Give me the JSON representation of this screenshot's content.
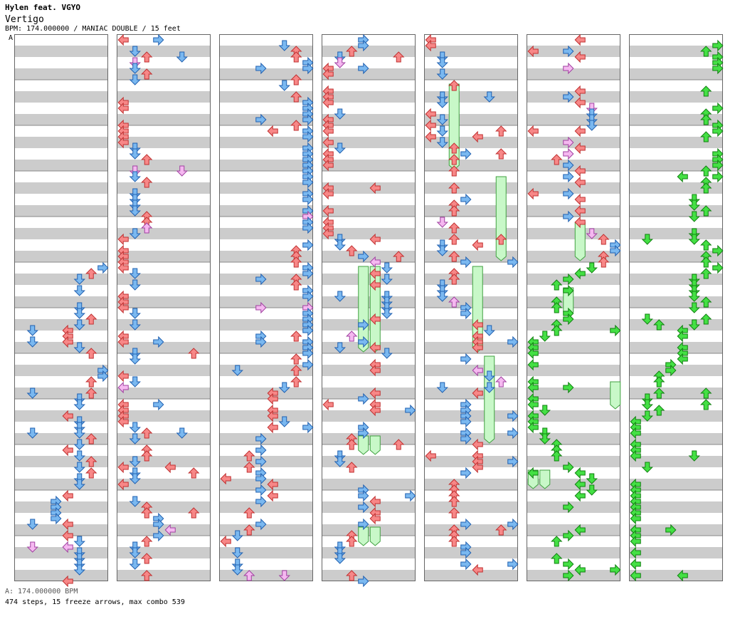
{
  "header": {
    "artist": "Hylen feat. VGYO",
    "song_title": "Vertigo",
    "meta": "BPM: 174.000000 / MANIAC DOUBLE / 15 feet"
  },
  "bpm_marker": "A",
  "footer": {
    "bpm_line": "A: 174.000000 BPM",
    "stats": "474 steps, 15 freeze arrows, max combo 539"
  },
  "colors": {
    "red": "#f78787",
    "red_stroke": "#c03030",
    "blue": "#7ab8f0",
    "blue_stroke": "#2060b0",
    "pink": "#f5b8f0",
    "pink_stroke": "#a040a0",
    "green": "#44e044",
    "green_stroke": "#108010",
    "freeze": "#c8f8c8",
    "freeze_stroke": "#40a040",
    "band": "#cccccc"
  },
  "columns": 7,
  "measures_per_column": 12,
  "lanes_per_column": 8
}
